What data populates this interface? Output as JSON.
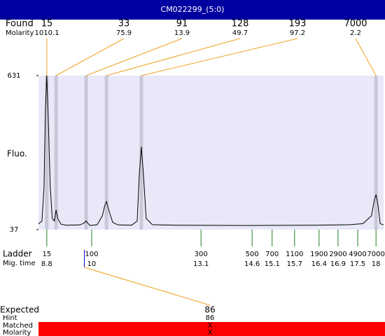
{
  "chart_data": {
    "type": "line",
    "title": "CM022299_(5:0)",
    "y_label": "Fluo.",
    "xlim": [
      0,
      100
    ],
    "ylim": [
      37,
      631
    ],
    "yticks": [
      37,
      631
    ],
    "band_color": "#c8c8d8",
    "plot_color": "#e8e8f8",
    "series": [
      {
        "color": "#000000",
        "x": [
          0,
          1,
          1.6,
          2,
          2.4,
          2.8,
          3.4,
          4,
          4.6,
          5.1,
          5.6,
          6.5,
          8,
          12,
          13.2,
          13.8,
          14.4,
          15,
          17,
          18.5,
          19.2,
          19.7,
          20.4,
          21.5,
          23,
          27,
          28.6,
          29.2,
          29.8,
          30.4,
          31.2,
          33,
          40,
          60,
          80,
          90,
          94,
          96.5,
          97.3,
          97.8,
          98.3,
          99,
          100
        ],
        "values": [
          59,
          70,
          200,
          500,
          631,
          480,
          200,
          80,
          70,
          113,
          80,
          58,
          54,
          55,
          62,
          70,
          60,
          53,
          56,
          90,
          130,
          145,
          110,
          65,
          55,
          54,
          70,
          250,
          356,
          250,
          80,
          56,
          54,
          53,
          54,
          56,
          60,
          90,
          150,
          172,
          140,
          60,
          55
        ]
      }
    ],
    "found": {
      "label": "Found",
      "sublabel": "Molarity",
      "line_color": "#f0a020",
      "peaks": [
        {
          "size": 15,
          "molarity": 1010.1,
          "x": 2.4
        },
        {
          "size": 33,
          "molarity": 75.9,
          "x": 5.1
        },
        {
          "size": 91,
          "molarity": 13.9,
          "x": 13.8
        },
        {
          "size": 128,
          "molarity": 49.7,
          "x": 19.7
        },
        {
          "size": 193,
          "molarity": 97.2,
          "x": 29.8
        },
        {
          "size": 7000,
          "molarity": 2.2,
          "x": 97.8
        }
      ]
    },
    "ladder": {
      "label": "Ladder",
      "sublabel": "Mig. time",
      "color": "#208020",
      "sizes": [
        15,
        100,
        300,
        500,
        700,
        1100,
        1900,
        2900,
        4900,
        7000
      ],
      "mig_times": [
        8.8,
        10,
        13.1,
        14.6,
        15.1,
        15.7,
        16.4,
        16.9,
        17.5,
        18
      ],
      "x": [
        2.4,
        15.4,
        47.1,
        61.9,
        67.7,
        74.2,
        81.3,
        86.8,
        92.5,
        97.8
      ]
    },
    "expected": {
      "label": "Expected",
      "value": 86,
      "hint_label": "Hint",
      "hint": 86,
      "matched_label": "Matched",
      "matched": "X",
      "molarity_label": "Molarity",
      "molarity": "X",
      "x": 13.3,
      "bar_color": "#ff0000"
    }
  }
}
